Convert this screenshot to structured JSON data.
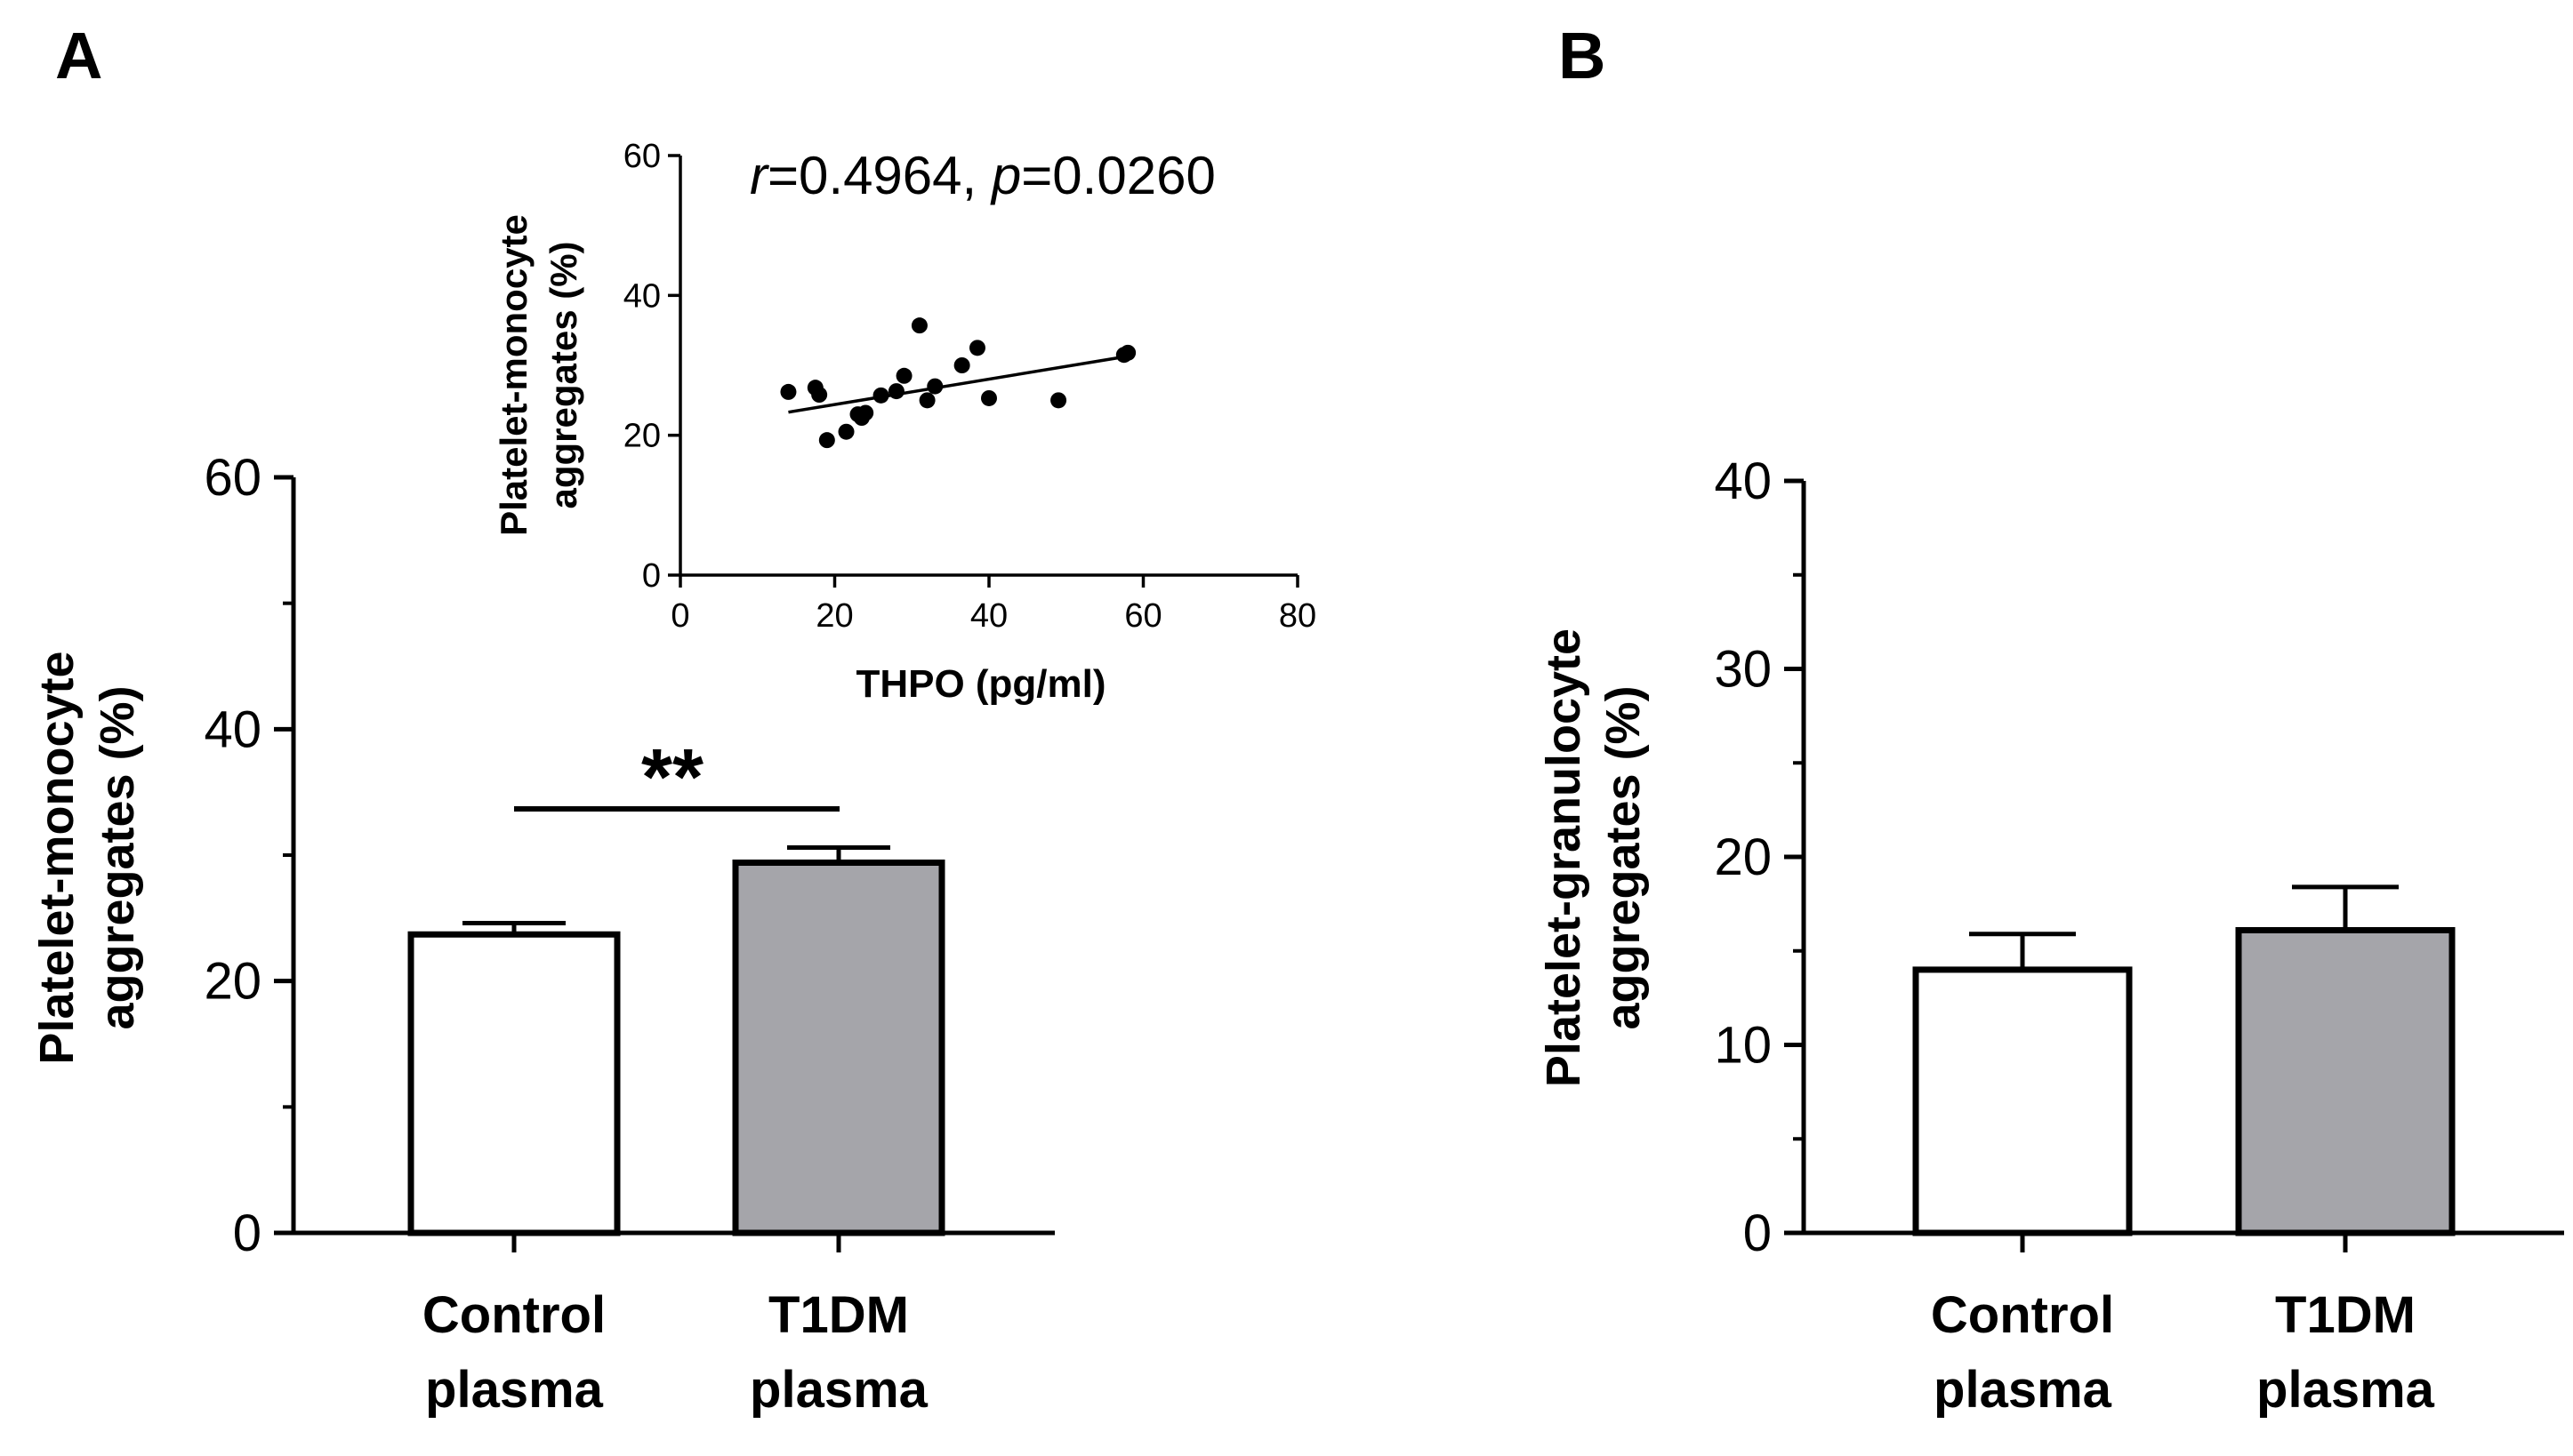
{
  "panels": {
    "a": {
      "letter": "A"
    },
    "b": {
      "letter": "B"
    }
  },
  "chart_data": [
    {
      "id": "panel-a-bars",
      "type": "bar",
      "categories": [
        {
          "line1": "Control",
          "line2": "plasma"
        },
        {
          "line1": "T1DM",
          "line2": "plasma"
        }
      ],
      "values": [
        23.7,
        29.4
      ],
      "errors": [
        0.9,
        1.2
      ],
      "bar_colors": [
        "#ffffff",
        "#a5a5aa"
      ],
      "ylabel_line1": "Platelet-monocyte",
      "ylabel_line2": "aggregates (%)",
      "ylim": [
        0,
        60
      ],
      "yticks": [
        "0",
        "20",
        "40",
        "60"
      ],
      "significance": "**"
    },
    {
      "id": "panel-a-inset",
      "type": "scatter",
      "text": {
        "r_sym": "r",
        "r_val": "=0.4964, ",
        "p_sym": "p",
        "p_val": "=0.0260"
      },
      "xlabel": "THPO (pg/ml)",
      "ylabel_line1": "Platelet-monocyte",
      "ylabel_line2": "aggregates (%)",
      "xlim": [
        0,
        80
      ],
      "ylim": [
        0,
        60
      ],
      "xticks": [
        "0",
        "20",
        "40",
        "60",
        "80"
      ],
      "yticks": [
        "0",
        "20",
        "40",
        "60"
      ],
      "points": [
        [
          14,
          26.2
        ],
        [
          17.5,
          26.8
        ],
        [
          18,
          25.8
        ],
        [
          19,
          19.3
        ],
        [
          21.5,
          20.5
        ],
        [
          23,
          23.0
        ],
        [
          23.5,
          22.5
        ],
        [
          24,
          23.2
        ],
        [
          26,
          25.7
        ],
        [
          28,
          26.3
        ],
        [
          29,
          28.5
        ],
        [
          31,
          35.7
        ],
        [
          32,
          25.0
        ],
        [
          33,
          27.0
        ],
        [
          36.5,
          30.0
        ],
        [
          38.5,
          32.5
        ],
        [
          40,
          25.3
        ],
        [
          49,
          25.0
        ],
        [
          57.5,
          31.5
        ],
        [
          58,
          31.8
        ]
      ],
      "fit": [
        [
          14,
          23.3
        ],
        [
          58,
          31.3
        ]
      ]
    },
    {
      "id": "panel-b-bars",
      "type": "bar",
      "categories": [
        {
          "line1": "Control",
          "line2": "plasma"
        },
        {
          "line1": "T1DM",
          "line2": "plasma"
        }
      ],
      "values": [
        14.0,
        16.1
      ],
      "errors": [
        1.9,
        2.3
      ],
      "bar_colors": [
        "#ffffff",
        "#a5a5aa"
      ],
      "ylabel_line1": "Platelet-granulocyte",
      "ylabel_line2": "aggregates (%)",
      "ylim": [
        0,
        40
      ],
      "yticks": [
        "0",
        "10",
        "20",
        "30",
        "40"
      ]
    }
  ]
}
